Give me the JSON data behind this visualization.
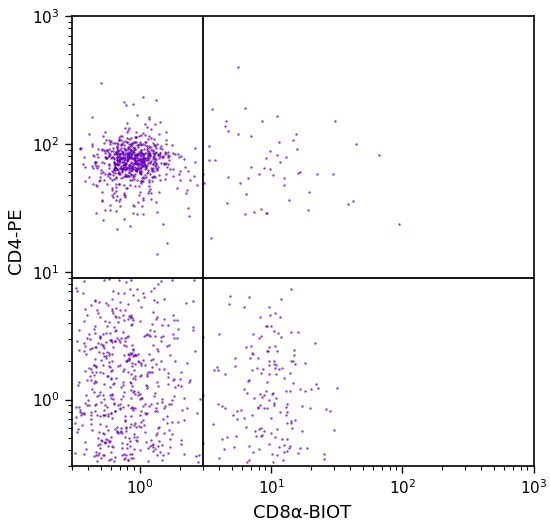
{
  "title": "",
  "xlabel": "CD8α-BIOT",
  "ylabel": "CD4-PE",
  "xlim": [
    0.3,
    1000
  ],
  "ylim": [
    0.3,
    1000
  ],
  "gate_x": 3.0,
  "gate_y": 9.0,
  "dot_color": "#6600BB",
  "dot_size": 3,
  "dot_alpha": 0.75,
  "bg_color": "#ffffff",
  "populations": {
    "upper_left_core": {
      "n": 450,
      "log_x_mean": -0.05,
      "log_x_std": 0.12,
      "log_y_mean": 1.88,
      "log_y_std": 0.08
    },
    "upper_left_outer": {
      "n": 250,
      "log_x_mean": -0.05,
      "log_x_std": 0.22,
      "log_y_mean": 1.82,
      "log_y_std": 0.2
    },
    "upper_right": {
      "n": 60,
      "log_x_mean": 0.9,
      "log_x_std": 0.45,
      "log_y_mean": 1.82,
      "log_y_std": 0.22
    },
    "upper_right_outlier_x": 0.75,
    "upper_right_outlier_y": 2.6,
    "lower_left": {
      "n": 750,
      "log_x_mean": -0.18,
      "log_x_std": 0.28,
      "log_y_mean": 0.05,
      "log_y_std": 0.52
    },
    "lower_right": {
      "n": 200,
      "log_x_mean": 0.95,
      "log_x_std": 0.22,
      "log_y_mean": -0.05,
      "log_y_std": 0.45
    }
  }
}
